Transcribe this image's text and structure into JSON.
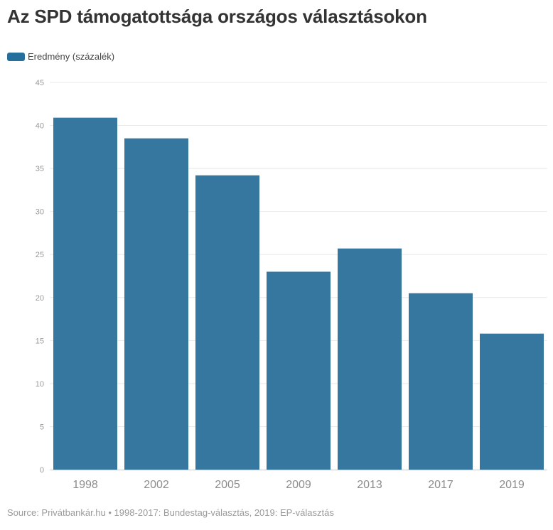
{
  "title": "Az SPD támogatottsága országos választásokon",
  "legend": {
    "label": "Eredmény (százalék)"
  },
  "source": "Source: Privátbankár.hu • 1998-2017: Bundestag-választás, 2019: EP-választás",
  "colors": {
    "bar": "#35779f",
    "swatch": "#266f9c",
    "grid": "#e8e8e8",
    "tick": "#999999",
    "axis": "#cccccc",
    "xtick": "#8c8c8c"
  },
  "chart_data": {
    "type": "bar",
    "categories": [
      "1998",
      "2002",
      "2005",
      "2009",
      "2013",
      "2017",
      "2019"
    ],
    "series": [
      {
        "name": "Eredmény (százalék)",
        "values": [
          40.9,
          38.5,
          34.2,
          23.0,
          25.7,
          20.5,
          15.8
        ]
      }
    ],
    "ylim": [
      0,
      45
    ],
    "yticks": [
      0,
      5,
      10,
      15,
      20,
      25,
      30,
      35,
      40,
      45
    ],
    "grid": true,
    "legend_position": "top-left"
  }
}
